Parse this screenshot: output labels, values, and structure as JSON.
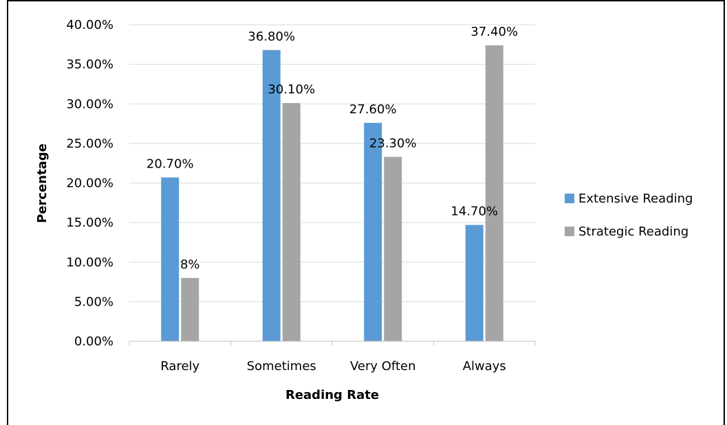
{
  "chart_data": {
    "type": "bar",
    "title": "",
    "xlabel": "Reading Rate",
    "ylabel": "Percentage",
    "categories": [
      "Rarely",
      "Sometimes",
      "Very Often",
      "Always"
    ],
    "ylim": [
      0,
      40
    ],
    "y_ticks": [
      "0.00%",
      "5.00%",
      "10.00%",
      "15.00%",
      "20.00%",
      "25.00%",
      "30.00%",
      "35.00%",
      "40.00%"
    ],
    "grid": true,
    "legend_position": "right",
    "series": [
      {
        "name": "Extensive Reading",
        "color": "#5B9BD5",
        "values": [
          20.7,
          36.8,
          27.6,
          14.7
        ],
        "labels": [
          "20.70%",
          "36.80%",
          "27.60%",
          "14.70%"
        ]
      },
      {
        "name": "Strategic Reading",
        "color": "#A5A5A5",
        "values": [
          8,
          30.1,
          23.3,
          37.4
        ],
        "labels": [
          "8%",
          "30.10%",
          "23.30%",
          "37.40%"
        ]
      }
    ]
  }
}
